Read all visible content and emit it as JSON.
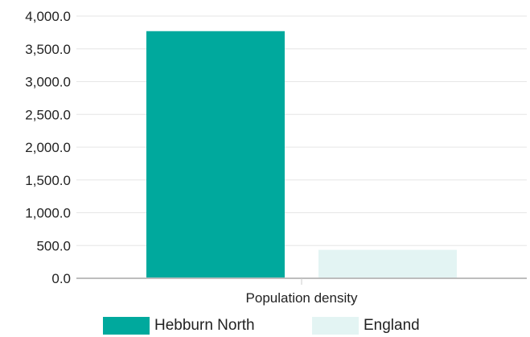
{
  "chart_data": {
    "type": "bar",
    "categories": [
      "Population density"
    ],
    "series": [
      {
        "name": "Hebburn North",
        "values": [
          3770
        ],
        "color": "#00a99d"
      },
      {
        "name": "England",
        "values": [
          434
        ],
        "color": "#e3f4f3"
      }
    ],
    "ylim": [
      0,
      4000
    ],
    "yticks": [
      "0.0",
      "500.0",
      "1,000.0",
      "1,500.0",
      "2,000.0",
      "2,500.0",
      "3,000.0",
      "3,500.0",
      "4,000.0"
    ],
    "ytick_values": [
      0,
      500,
      1000,
      1500,
      2000,
      2500,
      3000,
      3500,
      4000
    ],
    "grid": true,
    "legend_position": "bottom"
  }
}
